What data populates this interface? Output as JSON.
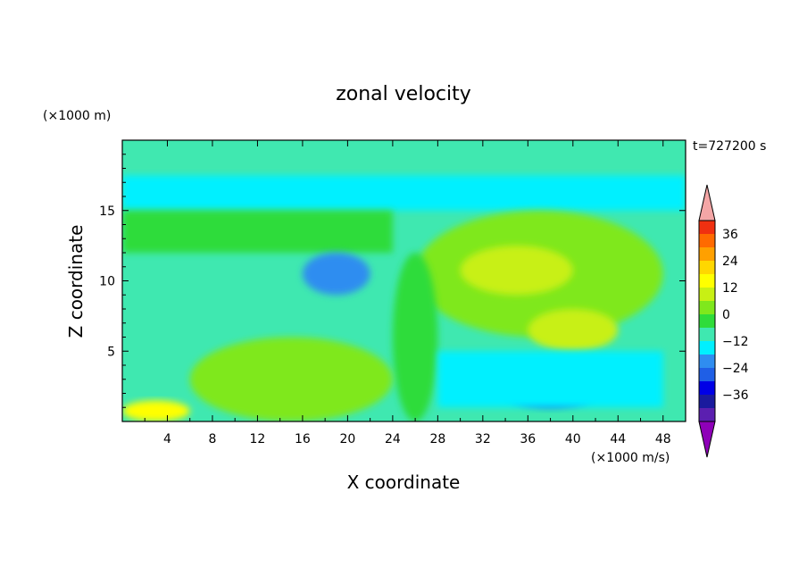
{
  "chart_data": {
    "type": "heatmap",
    "title": "zonal velocity",
    "xlabel": "X coordinate",
    "ylabel": "Z coordinate",
    "x_unit": "(×1000 m/s)",
    "y_unit": "(×1000 m)",
    "time_label": "t=727200 s",
    "xlim": [
      0,
      50
    ],
    "ylim": [
      0,
      20
    ],
    "x_ticks": [
      4,
      8,
      12,
      16,
      20,
      24,
      28,
      32,
      36,
      40,
      44,
      48
    ],
    "y_ticks": [
      5,
      10,
      15
    ],
    "colorbar": {
      "ticks": [
        36,
        24,
        12,
        0,
        -12,
        -24,
        -36
      ],
      "levels": [
        -42,
        -36,
        -30,
        -24,
        -18,
        -12,
        -6,
        0,
        6,
        12,
        18,
        24,
        30,
        36,
        42
      ],
      "colors": [
        "#8e00b8",
        "#5b1fb0",
        "#1a1a9e",
        "#0000e6",
        "#1f5fe6",
        "#2f8df0",
        "#00f0ff",
        "#3fe8b0",
        "#2fdc3a",
        "#7fe81c",
        "#c8f014",
        "#ffff00",
        "#ffd700",
        "#ffa000",
        "#ff6a00",
        "#f03010",
        "#f4a6a6"
      ]
    },
    "regions": [
      {
        "feature": "background",
        "x": [
          0,
          50
        ],
        "z": [
          0,
          20
        ],
        "value": -6
      },
      {
        "feature": "top band",
        "x": [
          0,
          50
        ],
        "z": [
          17,
          20
        ],
        "value": -3
      },
      {
        "feature": "upper jet",
        "x": [
          0,
          50
        ],
        "z": [
          15,
          17.5
        ],
        "value": -9
      },
      {
        "feature": "left green band",
        "x": [
          0,
          24
        ],
        "z": [
          12,
          15
        ],
        "value": 2
      },
      {
        "feature": "central minimum",
        "x": [
          16,
          22
        ],
        "z": [
          9,
          12
        ],
        "value": -15
      },
      {
        "feature": "right positive core",
        "x": [
          26,
          48
        ],
        "z": [
          6,
          15
        ],
        "value": 10
      },
      {
        "feature": "right yellow center",
        "x": [
          30,
          40
        ],
        "z": [
          9,
          12.5
        ],
        "value": 14
      },
      {
        "feature": "right secondary max",
        "x": [
          36,
          44
        ],
        "z": [
          5,
          8
        ],
        "value": 12
      },
      {
        "feature": "vertical positive stem",
        "x": [
          24,
          28
        ],
        "z": [
          0,
          12
        ],
        "value": 4
      },
      {
        "feature": "lower left positive",
        "x": [
          6,
          24
        ],
        "z": [
          0,
          6
        ],
        "value": 8
      },
      {
        "feature": "surface max",
        "x": [
          0,
          6
        ],
        "z": [
          0,
          1.5
        ],
        "value": 22
      },
      {
        "feature": "lower right minimum",
        "x": [
          34,
          42
        ],
        "z": [
          1,
          3
        ],
        "value": -22
      },
      {
        "feature": "lower right negative band",
        "x": [
          28,
          48
        ],
        "z": [
          1,
          5
        ],
        "value": -10
      }
    ]
  }
}
